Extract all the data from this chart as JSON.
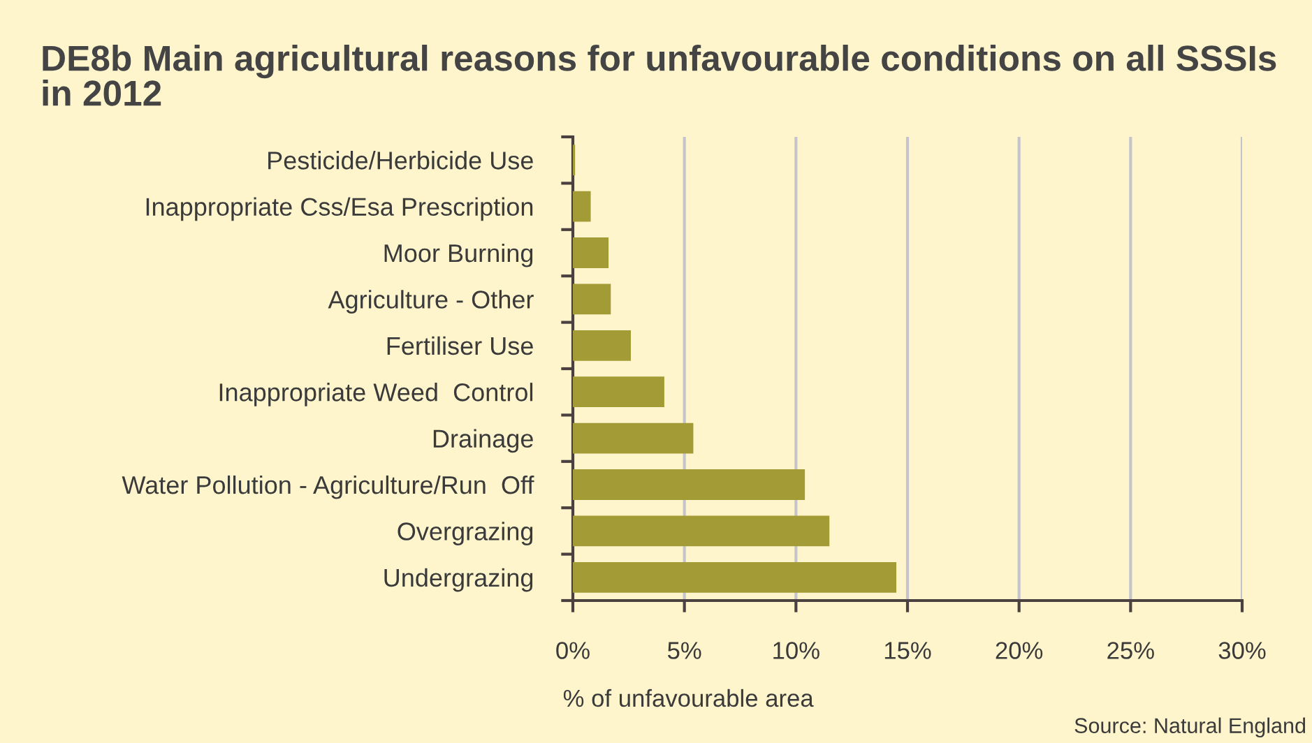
{
  "chart_data": {
    "type": "bar",
    "orientation": "horizontal",
    "title": "DE8b Main agricultural reasons for unfavourable conditions on all SSSIs in 2012",
    "xlabel": "% of unfavourable area",
    "annotations": [
      "Source: Natural England"
    ],
    "categories": [
      "Pesticide/Herbicide Use",
      "Inappropriate Css/Esa Prescription",
      "Moor Burning",
      "Agriculture - Other",
      "Fertiliser Use",
      "Inappropriate Weed  Control",
      "Drainage",
      "Water Pollution - Agriculture/Run  Off",
      "Overgrazing",
      "Undergrazing"
    ],
    "values": [
      0.1,
      0.8,
      1.6,
      1.7,
      2.6,
      4.1,
      5.4,
      10.4,
      11.5,
      14.5
    ],
    "color": "#a39b36",
    "xlim": [
      0,
      30
    ],
    "xticks": [
      {
        "value": 0,
        "label": "0%"
      },
      {
        "value": 5,
        "label": "5%"
      },
      {
        "value": 10,
        "label": "10%"
      },
      {
        "value": 15,
        "label": "15%"
      },
      {
        "value": 20,
        "label": "20%"
      },
      {
        "value": 25,
        "label": "25%"
      },
      {
        "value": 30,
        "label": "30%"
      }
    ],
    "grid": "x"
  }
}
